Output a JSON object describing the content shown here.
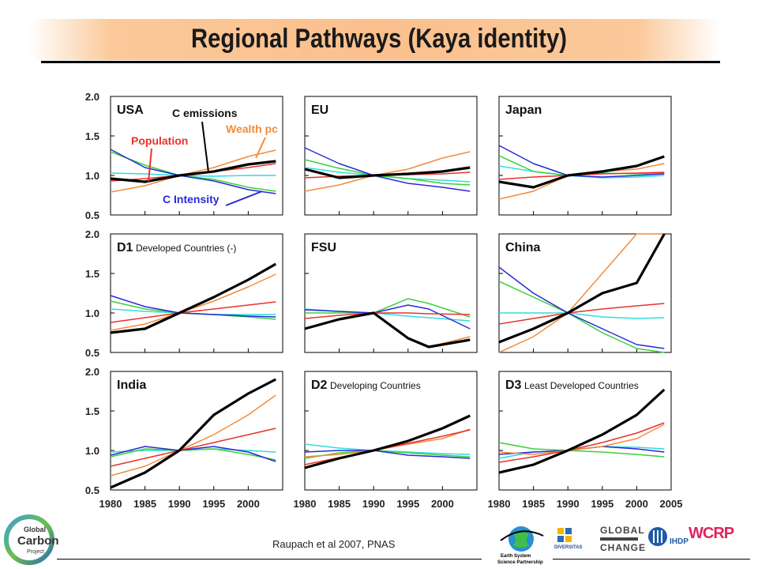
{
  "title": "Regional Pathways (Kaya identity)",
  "citation": "Raupach et al 2007, PNAS",
  "colors": {
    "population": "#e8332a",
    "wealth": "#f28c3a",
    "energy_intensity": "#3ad13a",
    "carbon_intensity": "#2a2ad8",
    "carbon_per_energy": "#33dcdc",
    "emissions": "#000000"
  },
  "logos": {
    "gcp_line1": "Global",
    "gcp_line2": "Carbon",
    "gcp_line3": "Project",
    "essp_line1": "Earth System",
    "essp_line2": "Science Partnership",
    "diversitas": "DIVERSITAS",
    "igbp_line1": "GLOBAL",
    "igbp_line2": "CHANGE",
    "ihdp": "IHDP",
    "wcrp": "WCRP"
  },
  "chart_data": [
    {
      "type": "line",
      "panel": "USA",
      "panel_label": "USA",
      "subtitle": "",
      "x": [
        1980,
        1985,
        1990,
        1995,
        2000,
        2004
      ],
      "xlim": [
        1980,
        2005
      ],
      "ylim": [
        0.5,
        2.0
      ],
      "yticks": [
        "2.0",
        "1.5",
        "1.0",
        "0.5"
      ],
      "annotations": [
        "C emissions",
        "Wealth pc",
        "Population",
        "C Intensity"
      ],
      "series": [
        {
          "key": "population",
          "values": [
            0.93,
            0.96,
            1.0,
            1.05,
            1.1,
            1.15
          ]
        },
        {
          "key": "wealth",
          "values": [
            0.79,
            0.87,
            1.0,
            1.1,
            1.24,
            1.32
          ]
        },
        {
          "key": "energy_intensity",
          "values": [
            1.3,
            1.13,
            1.0,
            0.95,
            0.85,
            0.8
          ]
        },
        {
          "key": "carbon_intensity",
          "values": [
            1.33,
            1.1,
            1.0,
            0.93,
            0.82,
            0.77
          ]
        },
        {
          "key": "carbon_per_energy",
          "values": [
            1.03,
            1.02,
            1.0,
            0.99,
            1.0,
            1.0
          ]
        },
        {
          "key": "emissions",
          "values": [
            0.96,
            0.92,
            1.0,
            1.05,
            1.14,
            1.18
          ]
        }
      ]
    },
    {
      "type": "line",
      "panel": "EU",
      "panel_label": "EU",
      "subtitle": "",
      "x": [
        1980,
        1985,
        1990,
        1995,
        2000,
        2004
      ],
      "xlim": [
        1980,
        2005
      ],
      "ylim": [
        0.5,
        2.0
      ],
      "yticks": [],
      "annotations": [],
      "series": [
        {
          "key": "population",
          "values": [
            0.97,
            0.99,
            1.0,
            1.01,
            1.02,
            1.04
          ]
        },
        {
          "key": "wealth",
          "values": [
            0.8,
            0.88,
            1.0,
            1.08,
            1.22,
            1.3
          ]
        },
        {
          "key": "energy_intensity",
          "values": [
            1.2,
            1.09,
            1.0,
            0.96,
            0.9,
            0.88
          ]
        },
        {
          "key": "carbon_intensity",
          "values": [
            1.35,
            1.15,
            1.0,
            0.9,
            0.85,
            0.8
          ]
        },
        {
          "key": "carbon_per_energy",
          "values": [
            1.1,
            1.04,
            1.0,
            0.96,
            0.94,
            0.92
          ]
        },
        {
          "key": "emissions",
          "values": [
            1.08,
            0.97,
            1.0,
            1.02,
            1.05,
            1.1
          ]
        }
      ]
    },
    {
      "type": "line",
      "panel": "Japan",
      "panel_label": "Japan",
      "subtitle": "",
      "x": [
        1980,
        1985,
        1990,
        1995,
        2000,
        2004
      ],
      "xlim": [
        1980,
        2005
      ],
      "ylim": [
        0.5,
        2.0
      ],
      "yticks": [],
      "annotations": [],
      "series": [
        {
          "key": "population",
          "values": [
            0.95,
            0.98,
            1.0,
            1.02,
            1.03,
            1.04
          ]
        },
        {
          "key": "wealth",
          "values": [
            0.7,
            0.8,
            1.0,
            1.05,
            1.08,
            1.15
          ]
        },
        {
          "key": "energy_intensity",
          "values": [
            1.25,
            1.05,
            1.0,
            1.03,
            1.02,
            1.03
          ]
        },
        {
          "key": "carbon_intensity",
          "values": [
            1.38,
            1.15,
            1.0,
            0.98,
            1.0,
            1.02
          ]
        },
        {
          "key": "carbon_per_energy",
          "values": [
            1.12,
            1.05,
            1.0,
            0.97,
            0.98,
            1.0
          ]
        },
        {
          "key": "emissions",
          "values": [
            0.92,
            0.85,
            1.0,
            1.05,
            1.12,
            1.24
          ]
        }
      ]
    },
    {
      "type": "line",
      "panel": "D1",
      "panel_label": "D1",
      "subtitle": "Developed Countries (-)",
      "x": [
        1980,
        1985,
        1990,
        1995,
        2000,
        2004
      ],
      "xlim": [
        1980,
        2005
      ],
      "ylim": [
        0.5,
        2.0
      ],
      "yticks": [
        "2.0",
        "1.5",
        "1.0",
        "0.5"
      ],
      "annotations": [],
      "series": [
        {
          "key": "population",
          "values": [
            0.88,
            0.94,
            1.0,
            1.05,
            1.1,
            1.14
          ]
        },
        {
          "key": "wealth",
          "values": [
            0.78,
            0.86,
            1.0,
            1.15,
            1.33,
            1.49
          ]
        },
        {
          "key": "energy_intensity",
          "values": [
            1.15,
            1.05,
            1.0,
            0.98,
            0.95,
            0.92
          ]
        },
        {
          "key": "carbon_intensity",
          "values": [
            1.22,
            1.08,
            1.0,
            0.98,
            0.96,
            0.95
          ]
        },
        {
          "key": "carbon_per_energy",
          "values": [
            1.05,
            1.02,
            1.0,
            0.98,
            0.98,
            0.98
          ]
        },
        {
          "key": "emissions",
          "values": [
            0.75,
            0.8,
            1.0,
            1.2,
            1.42,
            1.62
          ]
        }
      ]
    },
    {
      "type": "line",
      "panel": "FSU",
      "panel_label": "FSU",
      "subtitle": "",
      "x": [
        1980,
        1985,
        1990,
        1995,
        1998,
        2004
      ],
      "xlim": [
        1980,
        2005
      ],
      "ylim": [
        0.5,
        2.0
      ],
      "yticks": [],
      "annotations": [],
      "series": [
        {
          "key": "population",
          "values": [
            0.93,
            0.97,
            1.0,
            1.0,
            0.99,
            0.98
          ]
        },
        {
          "key": "wealth",
          "values": [
            0.8,
            0.92,
            1.0,
            0.68,
            0.57,
            0.7
          ]
        },
        {
          "key": "energy_intensity",
          "values": [
            1.0,
            1.0,
            1.0,
            1.18,
            1.12,
            0.95
          ]
        },
        {
          "key": "carbon_intensity",
          "values": [
            1.04,
            1.02,
            1.0,
            1.1,
            1.05,
            0.8
          ]
        },
        {
          "key": "carbon_per_energy",
          "values": [
            1.05,
            1.02,
            1.0,
            0.96,
            0.94,
            0.9
          ]
        },
        {
          "key": "emissions",
          "values": [
            0.8,
            0.92,
            1.0,
            0.68,
            0.57,
            0.66
          ]
        }
      ]
    },
    {
      "type": "line",
      "panel": "China",
      "panel_label": "China",
      "subtitle": "",
      "x": [
        1980,
        1985,
        1990,
        1995,
        2000,
        2004
      ],
      "xlim": [
        1980,
        2005
      ],
      "ylim": [
        0.5,
        2.0
      ],
      "yticks": [],
      "annotations": [],
      "series": [
        {
          "key": "population",
          "values": [
            0.86,
            0.93,
            1.0,
            1.05,
            1.09,
            1.12
          ]
        },
        {
          "key": "wealth",
          "values": [
            0.48,
            0.7,
            1.0,
            1.5,
            2.0,
            2.0
          ]
        },
        {
          "key": "energy_intensity",
          "values": [
            1.4,
            1.2,
            1.0,
            0.75,
            0.55,
            0.5
          ]
        },
        {
          "key": "carbon_intensity",
          "values": [
            1.58,
            1.25,
            1.0,
            0.8,
            0.6,
            0.55
          ]
        },
        {
          "key": "carbon_per_energy",
          "values": [
            1.0,
            1.0,
            1.0,
            0.95,
            0.93,
            0.94
          ]
        },
        {
          "key": "emissions",
          "values": [
            0.63,
            0.8,
            1.0,
            1.25,
            1.38,
            2.0
          ]
        }
      ]
    },
    {
      "type": "line",
      "panel": "India",
      "panel_label": "India",
      "subtitle": "",
      "x": [
        1980,
        1985,
        1990,
        1995,
        2000,
        2004
      ],
      "xlim": [
        1980,
        2005
      ],
      "ylim": [
        0.5,
        2.0
      ],
      "yticks": [
        "2.0",
        "1.5",
        "1.0",
        "0.5"
      ],
      "annotations": [],
      "series": [
        {
          "key": "population",
          "values": [
            0.8,
            0.9,
            1.0,
            1.1,
            1.2,
            1.28
          ]
        },
        {
          "key": "wealth",
          "values": [
            0.68,
            0.8,
            1.0,
            1.2,
            1.45,
            1.7
          ]
        },
        {
          "key": "energy_intensity",
          "values": [
            0.92,
            1.02,
            1.0,
            1.02,
            0.95,
            0.88
          ]
        },
        {
          "key": "carbon_intensity",
          "values": [
            0.94,
            1.05,
            1.0,
            1.05,
            0.98,
            0.86
          ]
        },
        {
          "key": "carbon_per_energy",
          "values": [
            0.98,
            1.0,
            1.0,
            1.02,
            1.0,
            0.98
          ]
        },
        {
          "key": "emissions",
          "values": [
            0.53,
            0.72,
            1.0,
            1.45,
            1.72,
            1.9
          ]
        }
      ]
    },
    {
      "type": "line",
      "panel": "D2",
      "panel_label": "D2",
      "subtitle": "Developing Countries",
      "x": [
        1980,
        1985,
        1990,
        1995,
        2000,
        2004
      ],
      "xlim": [
        1980,
        2005
      ],
      "ylim": [
        0.5,
        2.0
      ],
      "yticks": [],
      "annotations": [],
      "series": [
        {
          "key": "population",
          "values": [
            0.82,
            0.91,
            1.0,
            1.09,
            1.18,
            1.26
          ]
        },
        {
          "key": "wealth",
          "values": [
            0.92,
            0.95,
            1.0,
            1.08,
            1.15,
            1.27
          ]
        },
        {
          "key": "energy_intensity",
          "values": [
            0.9,
            0.97,
            1.0,
            0.97,
            0.94,
            0.92
          ]
        },
        {
          "key": "carbon_intensity",
          "values": [
            0.98,
            1.0,
            1.0,
            0.94,
            0.92,
            0.9
          ]
        },
        {
          "key": "carbon_per_energy",
          "values": [
            1.08,
            1.03,
            1.0,
            0.98,
            0.96,
            0.95
          ]
        },
        {
          "key": "emissions",
          "values": [
            0.78,
            0.9,
            1.0,
            1.12,
            1.28,
            1.44
          ]
        }
      ]
    },
    {
      "type": "line",
      "panel": "D3",
      "panel_label": "D3",
      "subtitle": "Least Developed Countries",
      "x": [
        1980,
        1985,
        1990,
        1995,
        2000,
        2004
      ],
      "xlim": [
        1980,
        2005
      ],
      "ylim": [
        0.5,
        2.0
      ],
      "yticks": [],
      "annotations": [],
      "series": [
        {
          "key": "population",
          "values": [
            0.85,
            0.92,
            1.0,
            1.1,
            1.22,
            1.35
          ]
        },
        {
          "key": "wealth",
          "values": [
            0.98,
            0.95,
            1.0,
            1.05,
            1.15,
            1.33
          ]
        },
        {
          "key": "energy_intensity",
          "values": [
            1.1,
            1.02,
            1.0,
            0.98,
            0.95,
            0.92
          ]
        },
        {
          "key": "carbon_intensity",
          "values": [
            0.95,
            0.98,
            1.0,
            1.05,
            1.02,
            0.98
          ]
        },
        {
          "key": "carbon_per_energy",
          "values": [
            0.9,
            0.98,
            1.0,
            1.05,
            1.04,
            1.02
          ]
        },
        {
          "key": "emissions",
          "values": [
            0.72,
            0.82,
            1.0,
            1.2,
            1.45,
            1.77
          ]
        }
      ]
    }
  ],
  "axes": {
    "xticks": [
      "1980",
      "1985",
      "1990",
      "1995",
      "2000"
    ],
    "xticks_last_panel": [
      "1980",
      "1985",
      "1990",
      "1995",
      "2000",
      "2005"
    ],
    "ylim": [
      0.5,
      2.0
    ],
    "xlim": [
      1980,
      2005
    ]
  }
}
